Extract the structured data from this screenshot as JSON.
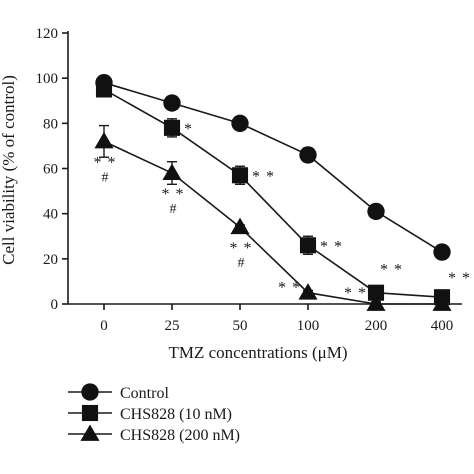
{
  "chart_data": {
    "type": "line",
    "xlabel": "TMZ concentrations (μM)",
    "ylabel": "Cell viability (% of control)",
    "categories": [
      "0",
      "25",
      "50",
      "100",
      "200",
      "400"
    ],
    "ylim": [
      0,
      120
    ],
    "yticks": [
      0,
      20,
      40,
      60,
      80,
      100,
      120
    ],
    "legend_position": "bottom-left",
    "grid": false,
    "series": [
      {
        "name": "Control",
        "marker": "circle",
        "values": [
          98,
          89,
          80,
          66,
          41,
          23
        ],
        "errors": [
          2,
          1,
          1,
          3,
          1,
          1
        ],
        "annotations": [
          "",
          "",
          "",
          "",
          "",
          ""
        ]
      },
      {
        "name": "CHS828 (10 nM)",
        "marker": "square",
        "values": [
          95,
          78,
          57,
          26,
          5,
          3
        ],
        "errors": [
          3,
          4,
          4,
          4,
          2,
          2
        ],
        "annotations": [
          "",
          "*",
          "**",
          "**",
          "**",
          "**"
        ]
      },
      {
        "name": "CHS828 (200 nM)",
        "marker": "triangle",
        "values": [
          72,
          58,
          34,
          5,
          0,
          0
        ],
        "errors": [
          7,
          5,
          1,
          1,
          1,
          1
        ],
        "annotations": [
          "**#",
          "**#",
          "**#",
          "**",
          "**",
          ""
        ]
      }
    ]
  }
}
